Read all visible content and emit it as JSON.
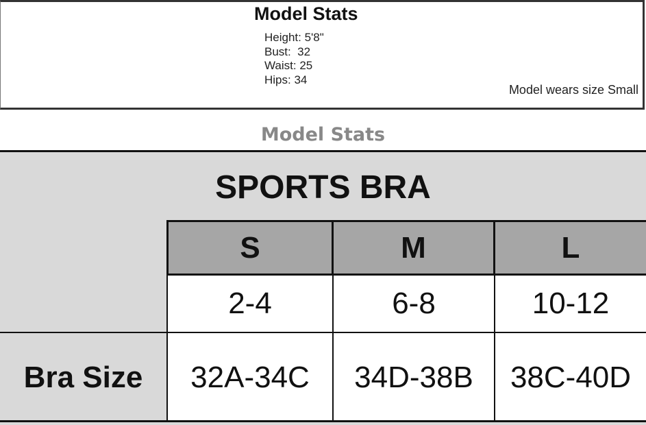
{
  "model_box": {
    "title": "Model Stats",
    "stats": [
      "Height: 5'8\"",
      "Bust:  32",
      "Waist: 25",
      "Hips: 34"
    ],
    "note": "Model wears size Small"
  },
  "subtitle": "Model Stats",
  "chart_data": {
    "type": "table",
    "title": "SPORTS BRA",
    "columns": [
      "S",
      "M",
      "L"
    ],
    "rows": [
      {
        "label": "",
        "values": [
          "2-4",
          "6-8",
          "10-12"
        ]
      },
      {
        "label": "Bra Size",
        "values": [
          "32A-34C",
          "34D-38B",
          "38C-40D"
        ]
      }
    ]
  }
}
